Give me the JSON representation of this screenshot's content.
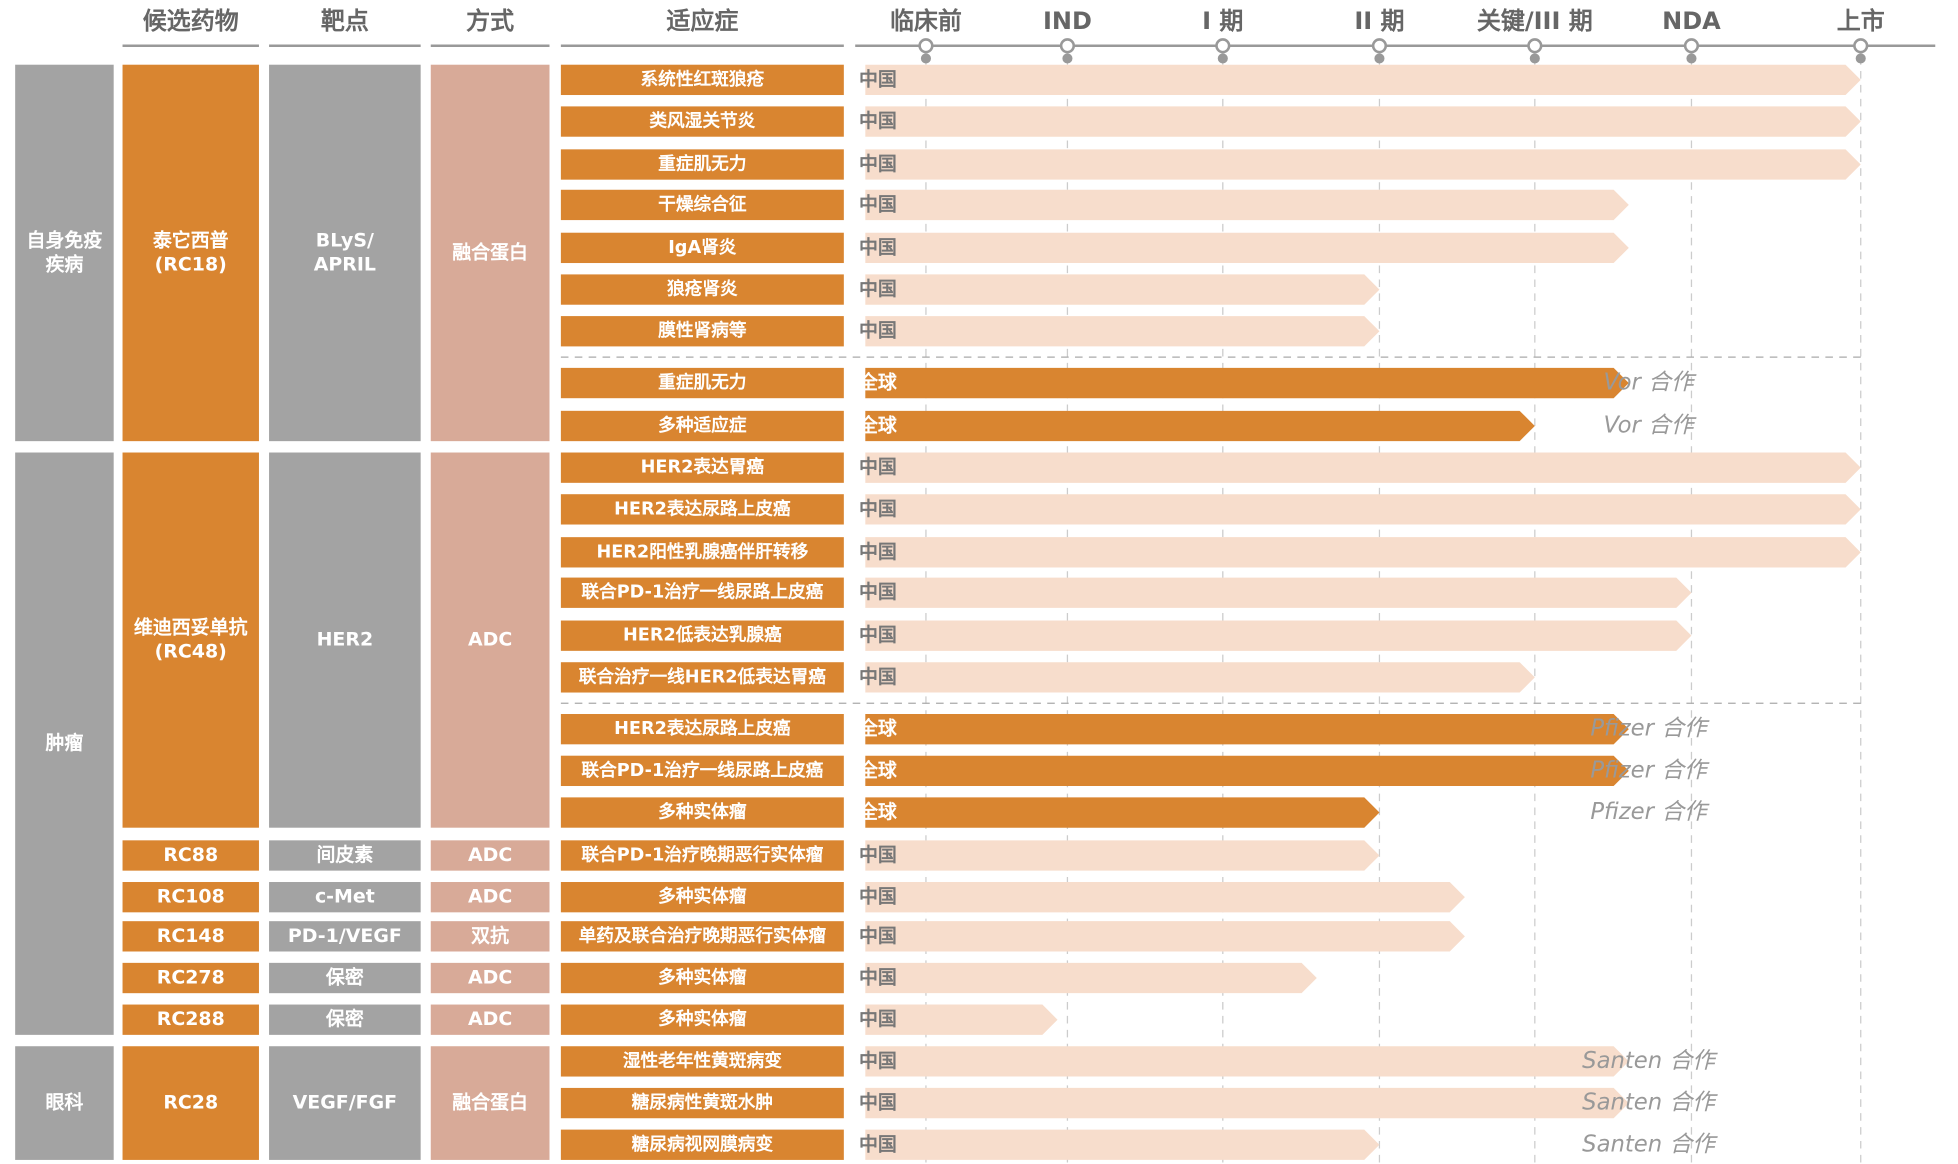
{
  "header": {
    "columns": [
      "候选药物",
      "靶点",
      "方式",
      "适应症"
    ],
    "stages": [
      {
        "value": 0,
        "label": "临床前"
      },
      {
        "value": 1,
        "label": "IND"
      },
      {
        "value": 2,
        "label": "I 期"
      },
      {
        "value": 3,
        "label": "II 期"
      },
      {
        "value": 4,
        "label": "关键/III 期"
      },
      {
        "value": 5,
        "label": "NDA"
      },
      {
        "value": 6,
        "label": "上市"
      }
    ]
  },
  "areas": [
    {
      "label": [
        "自身免疫",
        "疾病"
      ],
      "drugs": [
        {
          "name": [
            "泰它西普",
            "(RC18)"
          ],
          "target": [
            "BLyS/",
            "APRIL"
          ],
          "modality": "融合蛋白",
          "indications": [
            {
              "name": "系统性红斑狼疮",
              "region": "中国",
              "stage": 6
            },
            {
              "name": "类风湿关节炎",
              "region": "中国",
              "stage": 6
            },
            {
              "name": "重症肌无力",
              "region": "中国",
              "stage": 6
            },
            {
              "name": "干燥综合征",
              "region": "中国",
              "stage": 4.6
            },
            {
              "name": "IgA肾炎",
              "region": "中国",
              "stage": 4.6
            },
            {
              "name": "狼疮肾炎",
              "region": "中国",
              "stage": 3
            },
            {
              "name": "膜性肾病等",
              "region": "中国",
              "stage": 3
            },
            {
              "name": "重症肌无力",
              "region": "全球",
              "stage": 4.6,
              "partner": "Vor 合作"
            },
            {
              "name": "多种适应症",
              "region": "全球",
              "stage": 4,
              "partner": "Vor 合作"
            }
          ]
        }
      ]
    },
    {
      "label": "肿瘤",
      "drugs": [
        {
          "name": [
            "维迪西妥单抗",
            "(RC48)"
          ],
          "target": "HER2",
          "modality": "ADC",
          "indications": [
            {
              "name": "HER2表达胃癌",
              "region": "中国",
              "stage": 6
            },
            {
              "name": "HER2表达尿路上皮癌",
              "region": "中国",
              "stage": 6
            },
            {
              "name": "HER2阳性乳腺癌伴肝转移",
              "region": "中国",
              "stage": 6
            },
            {
              "name": "联合PD-1治疗一线尿路上皮癌",
              "region": "中国",
              "stage": 5
            },
            {
              "name": "HER2低表达乳腺癌",
              "region": "中国",
              "stage": 5
            },
            {
              "name": "联合治疗一线HER2低表达胃癌",
              "region": "中国",
              "stage": 4
            },
            {
              "name": "HER2表达尿路上皮癌",
              "region": "全球",
              "stage": 4.6,
              "partner": "Pfizer 合作"
            },
            {
              "name": "联合PD-1治疗一线尿路上皮癌",
              "region": "全球",
              "stage": 4.6,
              "partner": "Pfizer 合作"
            },
            {
              "name": "多种实体瘤",
              "region": "全球",
              "stage": 3,
              "partner": "Pfizer 合作"
            }
          ]
        },
        {
          "name": "RC88",
          "target": "间皮素",
          "modality": "ADC",
          "indications": [
            {
              "name": "联合PD-1治疗晚期恶行实体瘤",
              "region": "中国",
              "stage": 3
            }
          ]
        },
        {
          "name": "RC108",
          "target": "c-Met",
          "modality": "ADC",
          "indications": [
            {
              "name": "多种实体瘤",
              "region": "中国",
              "stage": 3.55
            }
          ]
        },
        {
          "name": "RC148",
          "target": "PD-1/VEGF",
          "modality": "双抗",
          "indications": [
            {
              "name": "单药及联合治疗晚期恶行实体瘤",
              "region": "中国",
              "stage": 3.55
            }
          ]
        },
        {
          "name": "RC278",
          "target": "保密",
          "modality": "ADC",
          "indications": [
            {
              "name": "多种实体瘤",
              "region": "中国",
              "stage": 2.6
            }
          ]
        },
        {
          "name": "RC288",
          "target": "保密",
          "modality": "ADC",
          "indications": [
            {
              "name": "多种实体瘤",
              "region": "中国",
              "stage": 0.93
            }
          ]
        }
      ]
    },
    {
      "label": "眼科",
      "drugs": [
        {
          "name": "RC28",
          "target": "VEGF/FGF",
          "modality": "融合蛋白",
          "indications": [
            {
              "name": "湿性老年性黄斑病变",
              "region": "中国",
              "stage": 4.6,
              "partner": "Santen 合作"
            },
            {
              "name": "糖尿病性黄斑水肿",
              "region": "中国",
              "stage": 4.6,
              "partner": "Santen 合作"
            },
            {
              "name": "糖尿病视网膜病变",
              "region": "中国",
              "stage": 3,
              "partner": "Santen 合作"
            }
          ]
        }
      ]
    }
  ]
}
